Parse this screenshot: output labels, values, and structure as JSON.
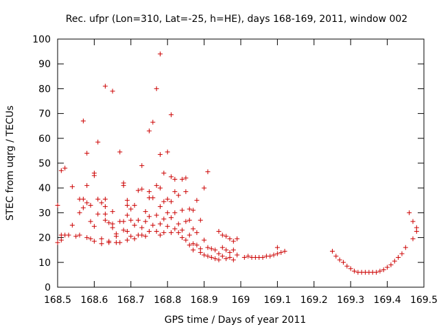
{
  "chart_data": {
    "type": "scatter",
    "title": "Rec. ufpr (Lon=310, Lat=-25, h=HE), days 168-169, 2011, window 002",
    "xlabel": "GPS time / Days of year 2011",
    "ylabel": "STEC from uqrg / TECUs",
    "xlim": [
      168.5,
      169.5
    ],
    "ylim": [
      0,
      100
    ],
    "xticks": [
      168.5,
      168.6,
      168.7,
      168.8,
      168.9,
      169.0,
      169.1,
      169.2,
      169.3,
      169.4,
      169.5
    ],
    "xtick_labels": [
      "168.5",
      "168.6",
      "168.7",
      "168.8",
      "168.9",
      "169",
      "169.1",
      "169.2",
      "169.3",
      "169.4",
      "169.5"
    ],
    "yticks": [
      0,
      10,
      20,
      30,
      40,
      50,
      60,
      70,
      80,
      90,
      100
    ],
    "ytick_labels": [
      "0",
      "10",
      "20",
      "30",
      "40",
      "50",
      "60",
      "70",
      "80",
      "90",
      "100"
    ],
    "grid": false,
    "marker": "+",
    "color": "#cc0000",
    "series": [
      {
        "name": "STEC",
        "points": [
          [
            168.5,
            33
          ],
          [
            168.5,
            18
          ],
          [
            168.51,
            47
          ],
          [
            168.51,
            19
          ],
          [
            168.51,
            21
          ],
          [
            168.52,
            48
          ],
          [
            168.52,
            21
          ],
          [
            168.53,
            21
          ],
          [
            168.54,
            40.5
          ],
          [
            168.54,
            25
          ],
          [
            168.55,
            20.5
          ],
          [
            168.56,
            35.5
          ],
          [
            168.56,
            30
          ],
          [
            168.56,
            21
          ],
          [
            168.57,
            67
          ],
          [
            168.57,
            32
          ],
          [
            168.57,
            35.5
          ],
          [
            168.58,
            20
          ],
          [
            168.58,
            54
          ],
          [
            168.58,
            41
          ],
          [
            168.58,
            34
          ],
          [
            168.59,
            19.5
          ],
          [
            168.59,
            33
          ],
          [
            168.59,
            26.5
          ],
          [
            168.6,
            46
          ],
          [
            168.6,
            45
          ],
          [
            168.6,
            24.5
          ],
          [
            168.6,
            18.5
          ],
          [
            168.61,
            29.5
          ],
          [
            168.61,
            35.5
          ],
          [
            168.61,
            58.5
          ],
          [
            168.62,
            34
          ],
          [
            168.62,
            19.5
          ],
          [
            168.62,
            17.5
          ],
          [
            168.63,
            81
          ],
          [
            168.63,
            32.5
          ],
          [
            168.63,
            35.5
          ],
          [
            168.63,
            29.5
          ],
          [
            168.63,
            27
          ],
          [
            168.64,
            18.5
          ],
          [
            168.64,
            26
          ],
          [
            168.64,
            18
          ],
          [
            168.65,
            79
          ],
          [
            168.65,
            30.5
          ],
          [
            168.65,
            25.5
          ],
          [
            168.65,
            24
          ],
          [
            168.66,
            18
          ],
          [
            168.66,
            20.5
          ],
          [
            168.66,
            21.5
          ],
          [
            168.67,
            54.5
          ],
          [
            168.67,
            26.5
          ],
          [
            168.67,
            18
          ],
          [
            168.68,
            42
          ],
          [
            168.68,
            41
          ],
          [
            168.68,
            26.5
          ],
          [
            168.68,
            23
          ],
          [
            168.69,
            35
          ],
          [
            168.69,
            33
          ],
          [
            168.69,
            29
          ],
          [
            168.69,
            22.5
          ],
          [
            168.69,
            19
          ],
          [
            168.7,
            31.5
          ],
          [
            168.7,
            27
          ],
          [
            168.7,
            20.5
          ],
          [
            168.71,
            33
          ],
          [
            168.71,
            25
          ],
          [
            168.71,
            19.5
          ],
          [
            168.72,
            39
          ],
          [
            168.72,
            27
          ],
          [
            168.72,
            21
          ],
          [
            168.73,
            49
          ],
          [
            168.73,
            39.5
          ],
          [
            168.73,
            24
          ],
          [
            168.73,
            21
          ],
          [
            168.74,
            30.5
          ],
          [
            168.74,
            26.5
          ],
          [
            168.74,
            20.5
          ],
          [
            168.75,
            63
          ],
          [
            168.75,
            38.5
          ],
          [
            168.75,
            36
          ],
          [
            168.75,
            28.5
          ],
          [
            168.75,
            22.5
          ],
          [
            168.76,
            66.5
          ],
          [
            168.76,
            36
          ],
          [
            168.76,
            25
          ],
          [
            168.77,
            80
          ],
          [
            168.77,
            41
          ],
          [
            168.77,
            29
          ],
          [
            168.77,
            22.5
          ],
          [
            168.78,
            94
          ],
          [
            168.78,
            53.5
          ],
          [
            168.78,
            40
          ],
          [
            168.78,
            32.5
          ],
          [
            168.78,
            25.5
          ],
          [
            168.78,
            21
          ],
          [
            168.79,
            46
          ],
          [
            168.79,
            34.5
          ],
          [
            168.79,
            27.5
          ],
          [
            168.79,
            22
          ],
          [
            168.8,
            54.5
          ],
          [
            168.8,
            35.5
          ],
          [
            168.8,
            30
          ],
          [
            168.8,
            24.5
          ],
          [
            168.81,
            69.5
          ],
          [
            168.81,
            44.5
          ],
          [
            168.81,
            34.5
          ],
          [
            168.81,
            28
          ],
          [
            168.81,
            22
          ],
          [
            168.82,
            43.5
          ],
          [
            168.82,
            38.5
          ],
          [
            168.82,
            30
          ],
          [
            168.82,
            23.5
          ],
          [
            168.83,
            37
          ],
          [
            168.83,
            25.5
          ],
          [
            168.83,
            22
          ],
          [
            168.84,
            43.5
          ],
          [
            168.84,
            31
          ],
          [
            168.84,
            23
          ],
          [
            168.84,
            20
          ],
          [
            168.85,
            44
          ],
          [
            168.85,
            38.5
          ],
          [
            168.85,
            26.5
          ],
          [
            168.85,
            19
          ],
          [
            168.86,
            31.5
          ],
          [
            168.86,
            27
          ],
          [
            168.86,
            21
          ],
          [
            168.86,
            17
          ],
          [
            168.87,
            31
          ],
          [
            168.87,
            23.5
          ],
          [
            168.87,
            17.5
          ],
          [
            168.87,
            15
          ],
          [
            168.88,
            35
          ],
          [
            168.88,
            22
          ],
          [
            168.88,
            17
          ],
          [
            168.89,
            27
          ],
          [
            168.89,
            15.5
          ],
          [
            168.89,
            14
          ],
          [
            168.9,
            40
          ],
          [
            168.9,
            19
          ],
          [
            168.9,
            13
          ],
          [
            168.91,
            46.5
          ],
          [
            168.91,
            16
          ],
          [
            168.91,
            12.5
          ],
          [
            168.92,
            15.5
          ],
          [
            168.92,
            12
          ],
          [
            168.93,
            15
          ],
          [
            168.93,
            11.5
          ],
          [
            168.94,
            22.5
          ],
          [
            168.94,
            13.5
          ],
          [
            168.94,
            11
          ],
          [
            168.95,
            21
          ],
          [
            168.95,
            16
          ],
          [
            168.95,
            12.5
          ],
          [
            168.96,
            20.5
          ],
          [
            168.96,
            15
          ],
          [
            168.96,
            11.5
          ],
          [
            168.97,
            19.5
          ],
          [
            168.97,
            14
          ],
          [
            168.97,
            12
          ],
          [
            168.98,
            18.5
          ],
          [
            168.98,
            15
          ],
          [
            168.98,
            11
          ],
          [
            168.99,
            19.5
          ],
          [
            168.99,
            13
          ],
          [
            169.01,
            12
          ],
          [
            169.02,
            12.5
          ],
          [
            169.03,
            12
          ],
          [
            169.04,
            12
          ],
          [
            169.05,
            12
          ],
          [
            169.06,
            12
          ],
          [
            169.07,
            12.5
          ],
          [
            169.08,
            12.5
          ],
          [
            169.09,
            13
          ],
          [
            169.1,
            13.5
          ],
          [
            169.1,
            16
          ],
          [
            169.11,
            14
          ],
          [
            169.12,
            14.5
          ],
          [
            169.25,
            14.5
          ],
          [
            169.26,
            12.5
          ],
          [
            169.27,
            11
          ],
          [
            169.28,
            10
          ],
          [
            169.29,
            8.5
          ],
          [
            169.3,
            7.5
          ],
          [
            169.31,
            6.5
          ],
          [
            169.32,
            6
          ],
          [
            169.33,
            6
          ],
          [
            169.34,
            6
          ],
          [
            169.35,
            6
          ],
          [
            169.36,
            6
          ],
          [
            169.37,
            6
          ],
          [
            169.38,
            6.5
          ],
          [
            169.39,
            7
          ],
          [
            169.4,
            8
          ],
          [
            169.41,
            9
          ],
          [
            169.42,
            10.5
          ],
          [
            169.43,
            12
          ],
          [
            169.44,
            13.5
          ],
          [
            169.45,
            16
          ],
          [
            169.46,
            30
          ],
          [
            169.47,
            26.5
          ],
          [
            169.47,
            19.5
          ],
          [
            169.48,
            24
          ],
          [
            169.48,
            22.5
          ]
        ]
      }
    ]
  }
}
